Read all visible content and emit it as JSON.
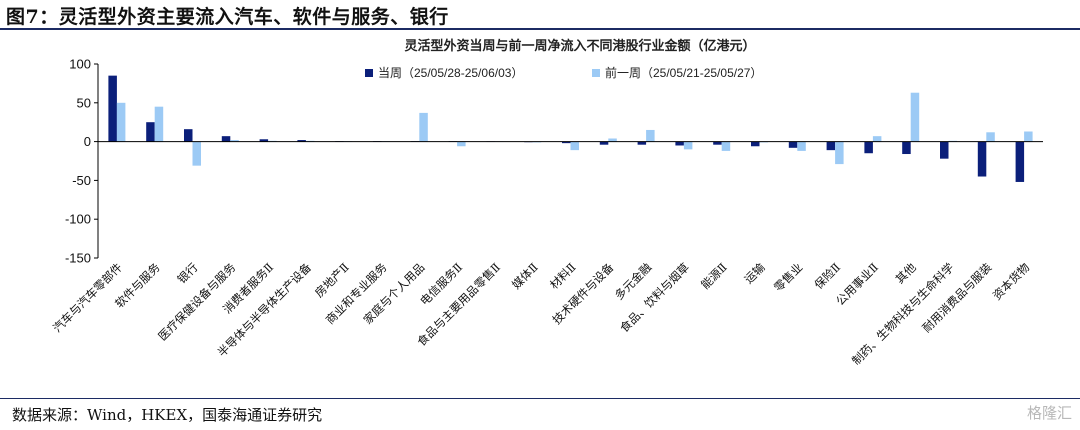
{
  "figure_title": "图7：灵活型外资主要流入汽车、软件与服务、银行",
  "source_note": "数据来源：Wind，HKEX，国泰海通证券研究",
  "watermark": "格隆汇",
  "colors": {
    "current": "#0b1f7a",
    "previous": "#9ccaf5",
    "rule": "#1c2b63"
  },
  "chart_data": {
    "type": "bar",
    "title": "灵活型外资当周与前一周净流入不同港股行业金额（亿港元）",
    "ylim": [
      -150,
      100
    ],
    "yticks": [
      100,
      50,
      0,
      -50,
      -100,
      -150
    ],
    "grid": false,
    "legend_position": "top-center",
    "categories": [
      "汽车与汽车零部件",
      "软件与服务",
      "银行",
      "医疗保健设备与服务",
      "消费者服务Ⅱ",
      "半导体与半导体生产设备",
      "房地产Ⅱ",
      "商业和专业服务",
      "家庭与个人用品",
      "电信服务Ⅱ",
      "食品与主要用品零售Ⅱ",
      "媒体Ⅱ",
      "材料Ⅱ",
      "技术硬件与设备",
      "多元金融",
      "食品、饮料与烟草",
      "能源Ⅱ",
      "运输",
      "零售业",
      "保险Ⅱ",
      "公用事业Ⅱ",
      "其他",
      "制药、生物科技与生命科学",
      "耐用消费品与服装",
      "资本货物"
    ],
    "series": [
      {
        "name": "当周（25/05/28-25/06/03）",
        "values": [
          85,
          25,
          16,
          7,
          3,
          2,
          0.5,
          0.5,
          0.5,
          0.5,
          0.3,
          -0.5,
          -2,
          -4,
          -4,
          -5,
          -4,
          -6,
          -8,
          -11,
          -15,
          -16,
          -22,
          -45,
          -52
        ]
      },
      {
        "name": "前一周（25/05/21-25/05/27）",
        "values": [
          50,
          45,
          -31,
          2,
          1,
          1,
          0.5,
          0.5,
          37,
          -6,
          0.3,
          -1,
          -11,
          4,
          15,
          -10,
          -12,
          -1,
          -12,
          -29,
          7,
          63,
          1,
          12,
          13
        ]
      }
    ]
  }
}
